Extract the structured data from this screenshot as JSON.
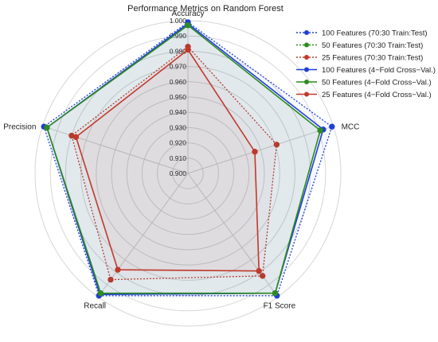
{
  "chart_data": {
    "type": "radar",
    "title": "Performance Metrics on Random Forest",
    "axes": [
      "Accuracy",
      "MCC",
      "F1 Score",
      "Recall",
      "Precision"
    ],
    "rlim": [
      0.9,
      1.0
    ],
    "ticks": [
      0.9,
      0.91,
      0.92,
      0.93,
      0.94,
      0.95,
      0.96,
      0.97,
      0.98,
      0.99,
      1.0
    ],
    "tick_labels": [
      "0.900",
      "0.910",
      "0.920",
      "0.930",
      "0.940",
      "0.950",
      "0.960",
      "0.970",
      "0.980",
      "0.990",
      "1.000"
    ],
    "grid": true,
    "legend_position": "top-right",
    "series": [
      {
        "name": "100 Features (70:30  Train:Test)",
        "color": "#1f3fd6",
        "style": "dotted",
        "values": [
          0.999,
          0.999,
          0.999,
          0.999,
          0.999
        ]
      },
      {
        "name": "50 Features (70:30  Train:Test)",
        "color": "#2e8b1e",
        "style": "dotted",
        "values": [
          0.997,
          0.991,
          0.997,
          0.998,
          0.997
        ]
      },
      {
        "name": "25 Features (70:30  Train:Test)",
        "color": "#c0392b",
        "style": "dotted",
        "values": [
          0.983,
          0.961,
          0.983,
          0.986,
          0.98
        ]
      },
      {
        "name": "100 Features (4−Fold Cross−Val.)",
        "color": "#1f3fd6",
        "style": "solid",
        "values": [
          0.998,
          0.993,
          0.997,
          0.998,
          0.997
        ]
      },
      {
        "name": "50 Features (4−Fold Cross−Val.)",
        "color": "#2e8b1e",
        "style": "solid",
        "values": [
          0.997,
          0.991,
          0.997,
          0.997,
          0.997
        ]
      },
      {
        "name": "25 Features (4−Fold Cross−Val.)",
        "color": "#c0392b",
        "style": "solid",
        "values": [
          0.981,
          0.946,
          0.979,
          0.978,
          0.977
        ]
      }
    ]
  }
}
